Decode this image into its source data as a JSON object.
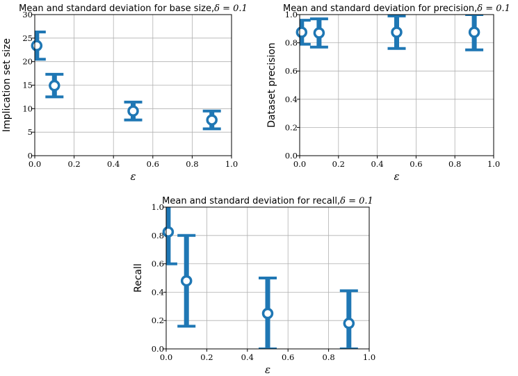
{
  "chart_data": [
    {
      "type": "scatter",
      "title": "Mean and standard deviation for base size,",
      "title_math": "δ = 0.1",
      "xlabel": "ε",
      "ylabel": "Implication set size",
      "xlim": [
        0,
        1
      ],
      "ylim": [
        0,
        30
      ],
      "xticks": [
        "0.0",
        "0.2",
        "0.4",
        "0.6",
        "0.8",
        "1.0"
      ],
      "yticks": [
        "0",
        "5",
        "10",
        "15",
        "20",
        "25",
        "30"
      ],
      "grid": true,
      "color": "#1f77b4",
      "x": [
        0.01,
        0.1,
        0.5,
        0.9
      ],
      "y": [
        23.4,
        14.9,
        9.5,
        7.6
      ],
      "yerr_low": [
        20.5,
        12.5,
        7.6,
        5.7
      ],
      "yerr_high": [
        26.3,
        17.3,
        11.4,
        9.5
      ]
    },
    {
      "type": "scatter",
      "title": "Mean and standard deviation for precision,",
      "title_math": "δ = 0.1",
      "xlabel": "ε",
      "ylabel": "Dataset precision",
      "xlim": [
        0,
        1
      ],
      "ylim": [
        0,
        1
      ],
      "xticks": [
        "0.0",
        "0.2",
        "0.4",
        "0.6",
        "0.8",
        "1.0"
      ],
      "yticks": [
        "0.0",
        "0.2",
        "0.4",
        "0.6",
        "0.8",
        "1.0"
      ],
      "grid": true,
      "color": "#1f77b4",
      "x": [
        0.01,
        0.1,
        0.5,
        0.9
      ],
      "y": [
        0.875,
        0.87,
        0.875,
        0.875
      ],
      "yerr_low": [
        0.79,
        0.77,
        0.76,
        0.75
      ],
      "yerr_high": [
        0.96,
        0.97,
        0.99,
        1.0
      ]
    },
    {
      "type": "scatter",
      "title": "Mean and standard deviation for recall,",
      "title_math": "δ = 0.1",
      "xlabel": "ε",
      "ylabel": "Recall",
      "xlim": [
        0,
        1
      ],
      "ylim": [
        0,
        1
      ],
      "xticks": [
        "0.0",
        "0.2",
        "0.4",
        "0.6",
        "0.8",
        "1.0"
      ],
      "yticks": [
        "0.0",
        "0.2",
        "0.4",
        "0.6",
        "0.8",
        "1.0"
      ],
      "grid": true,
      "color": "#1f77b4",
      "x": [
        0.01,
        0.1,
        0.5,
        0.9
      ],
      "y": [
        0.825,
        0.48,
        0.25,
        0.18
      ],
      "yerr_low": [
        0.6,
        0.16,
        0.0,
        0.0
      ],
      "yerr_high": [
        1.05,
        0.8,
        0.5,
        0.41
      ]
    }
  ]
}
